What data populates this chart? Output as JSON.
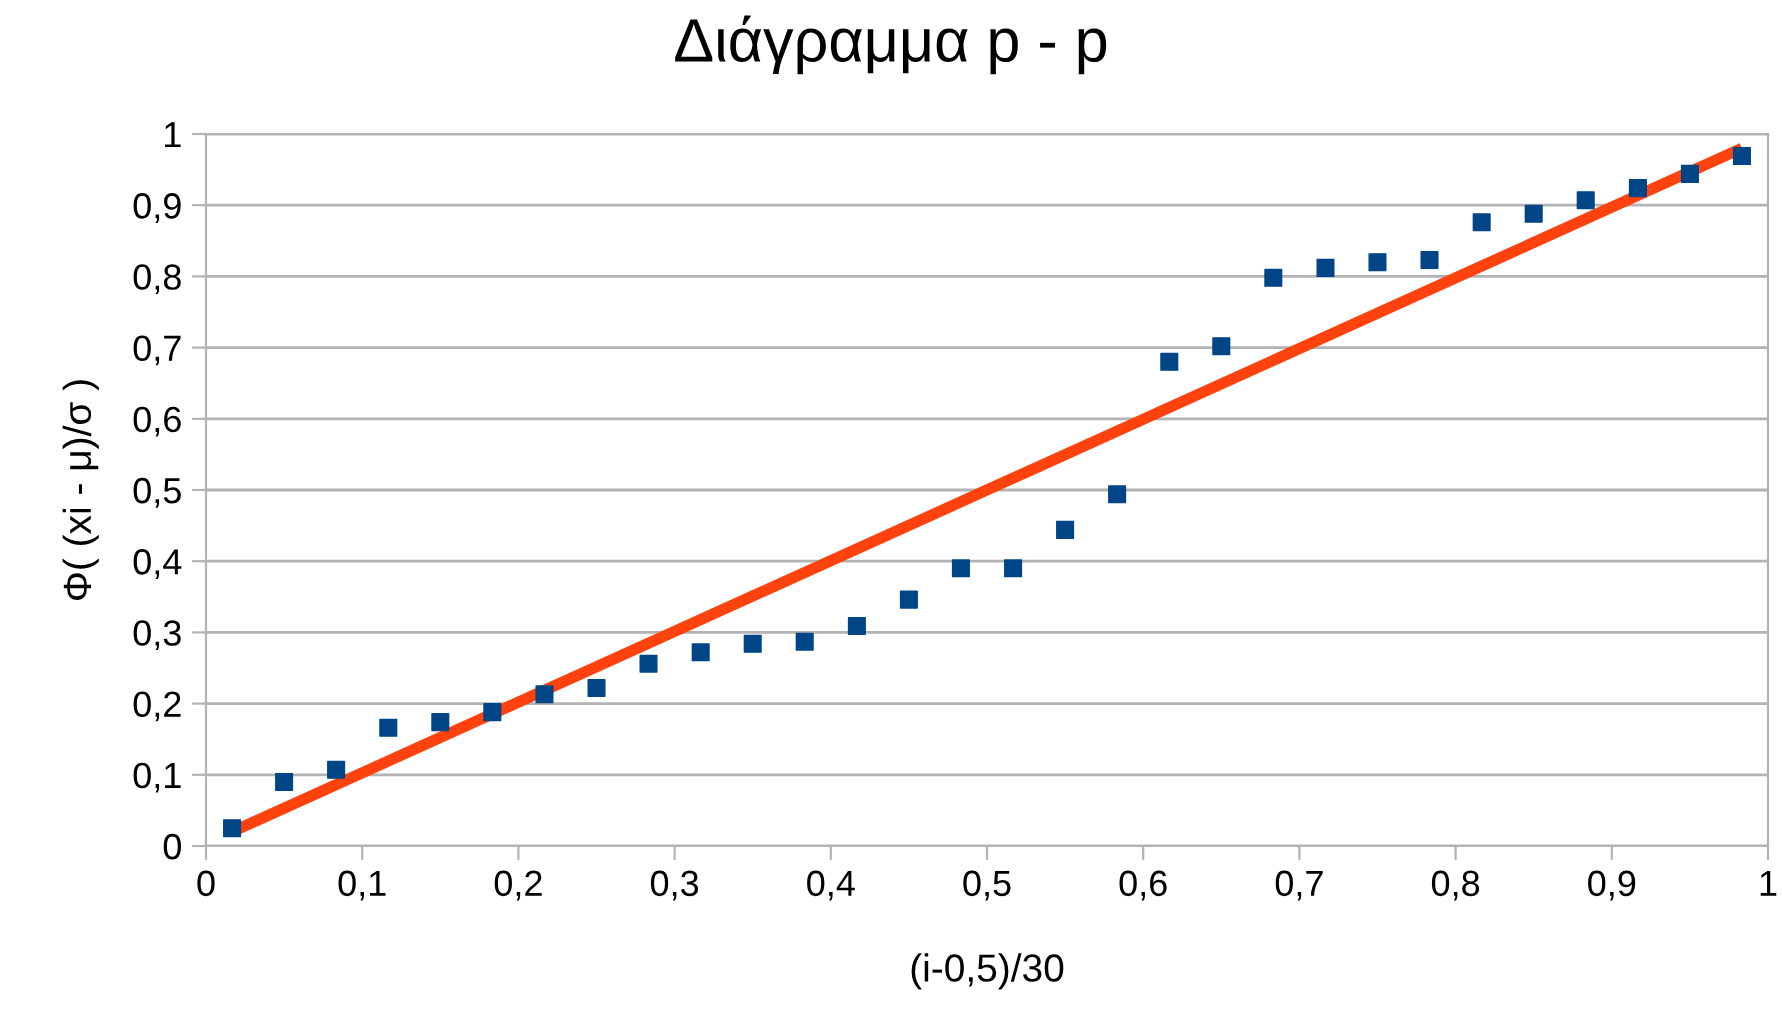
{
  "chart_data": {
    "type": "scatter",
    "title": "Διάγραμμα p - p",
    "xlabel": "(i-0,5)/30",
    "ylabel": "Φ( (xi - μ)/σ )",
    "xlim": [
      0,
      1
    ],
    "ylim": [
      0,
      1
    ],
    "xticks": [
      {
        "value": 0,
        "label": "0"
      },
      {
        "value": 0.1,
        "label": "0,1"
      },
      {
        "value": 0.2,
        "label": "0,2"
      },
      {
        "value": 0.3,
        "label": "0,3"
      },
      {
        "value": 0.4,
        "label": "0,4"
      },
      {
        "value": 0.5,
        "label": "0,5"
      },
      {
        "value": 0.6,
        "label": "0,6"
      },
      {
        "value": 0.7,
        "label": "0,7"
      },
      {
        "value": 0.8,
        "label": "0,8"
      },
      {
        "value": 0.9,
        "label": "0,9"
      },
      {
        "value": 1,
        "label": "1"
      }
    ],
    "yticks": [
      {
        "value": 0,
        "label": "0"
      },
      {
        "value": 0.1,
        "label": "0,1"
      },
      {
        "value": 0.2,
        "label": "0,2"
      },
      {
        "value": 0.3,
        "label": "0,3"
      },
      {
        "value": 0.4,
        "label": "0,4"
      },
      {
        "value": 0.5,
        "label": "0,5"
      },
      {
        "value": 0.6,
        "label": "0,6"
      },
      {
        "value": 0.7,
        "label": "0,7"
      },
      {
        "value": 0.8,
        "label": "0,8"
      },
      {
        "value": 0.9,
        "label": "0,9"
      },
      {
        "value": 1,
        "label": "1"
      }
    ],
    "grid": "y",
    "legend": false,
    "series": [
      {
        "marker": "square",
        "color": "#004586",
        "x": [
          0.0167,
          0.05,
          0.0833,
          0.1167,
          0.15,
          0.1833,
          0.2167,
          0.25,
          0.2833,
          0.3167,
          0.35,
          0.3833,
          0.4167,
          0.45,
          0.4833,
          0.5167,
          0.55,
          0.5833,
          0.6167,
          0.65,
          0.6833,
          0.7167,
          0.75,
          0.7833,
          0.8167,
          0.85,
          0.8833,
          0.9167,
          0.95,
          0.9833
        ],
        "values": [
          0.025,
          0.09,
          0.107,
          0.166,
          0.174,
          0.188,
          0.213,
          0.222,
          0.256,
          0.272,
          0.284,
          0.287,
          0.309,
          0.346,
          0.39,
          0.39,
          0.444,
          0.494,
          0.68,
          0.702,
          0.798,
          0.812,
          0.82,
          0.823,
          0.876,
          0.888,
          0.907,
          0.924,
          0.944,
          0.969
        ]
      },
      {
        "type": "line",
        "marker": "none",
        "line_style": "solid",
        "color": "#ff420e",
        "x": [
          0.0167,
          0.9833
        ],
        "values": [
          0.02,
          0.98
        ]
      }
    ]
  }
}
